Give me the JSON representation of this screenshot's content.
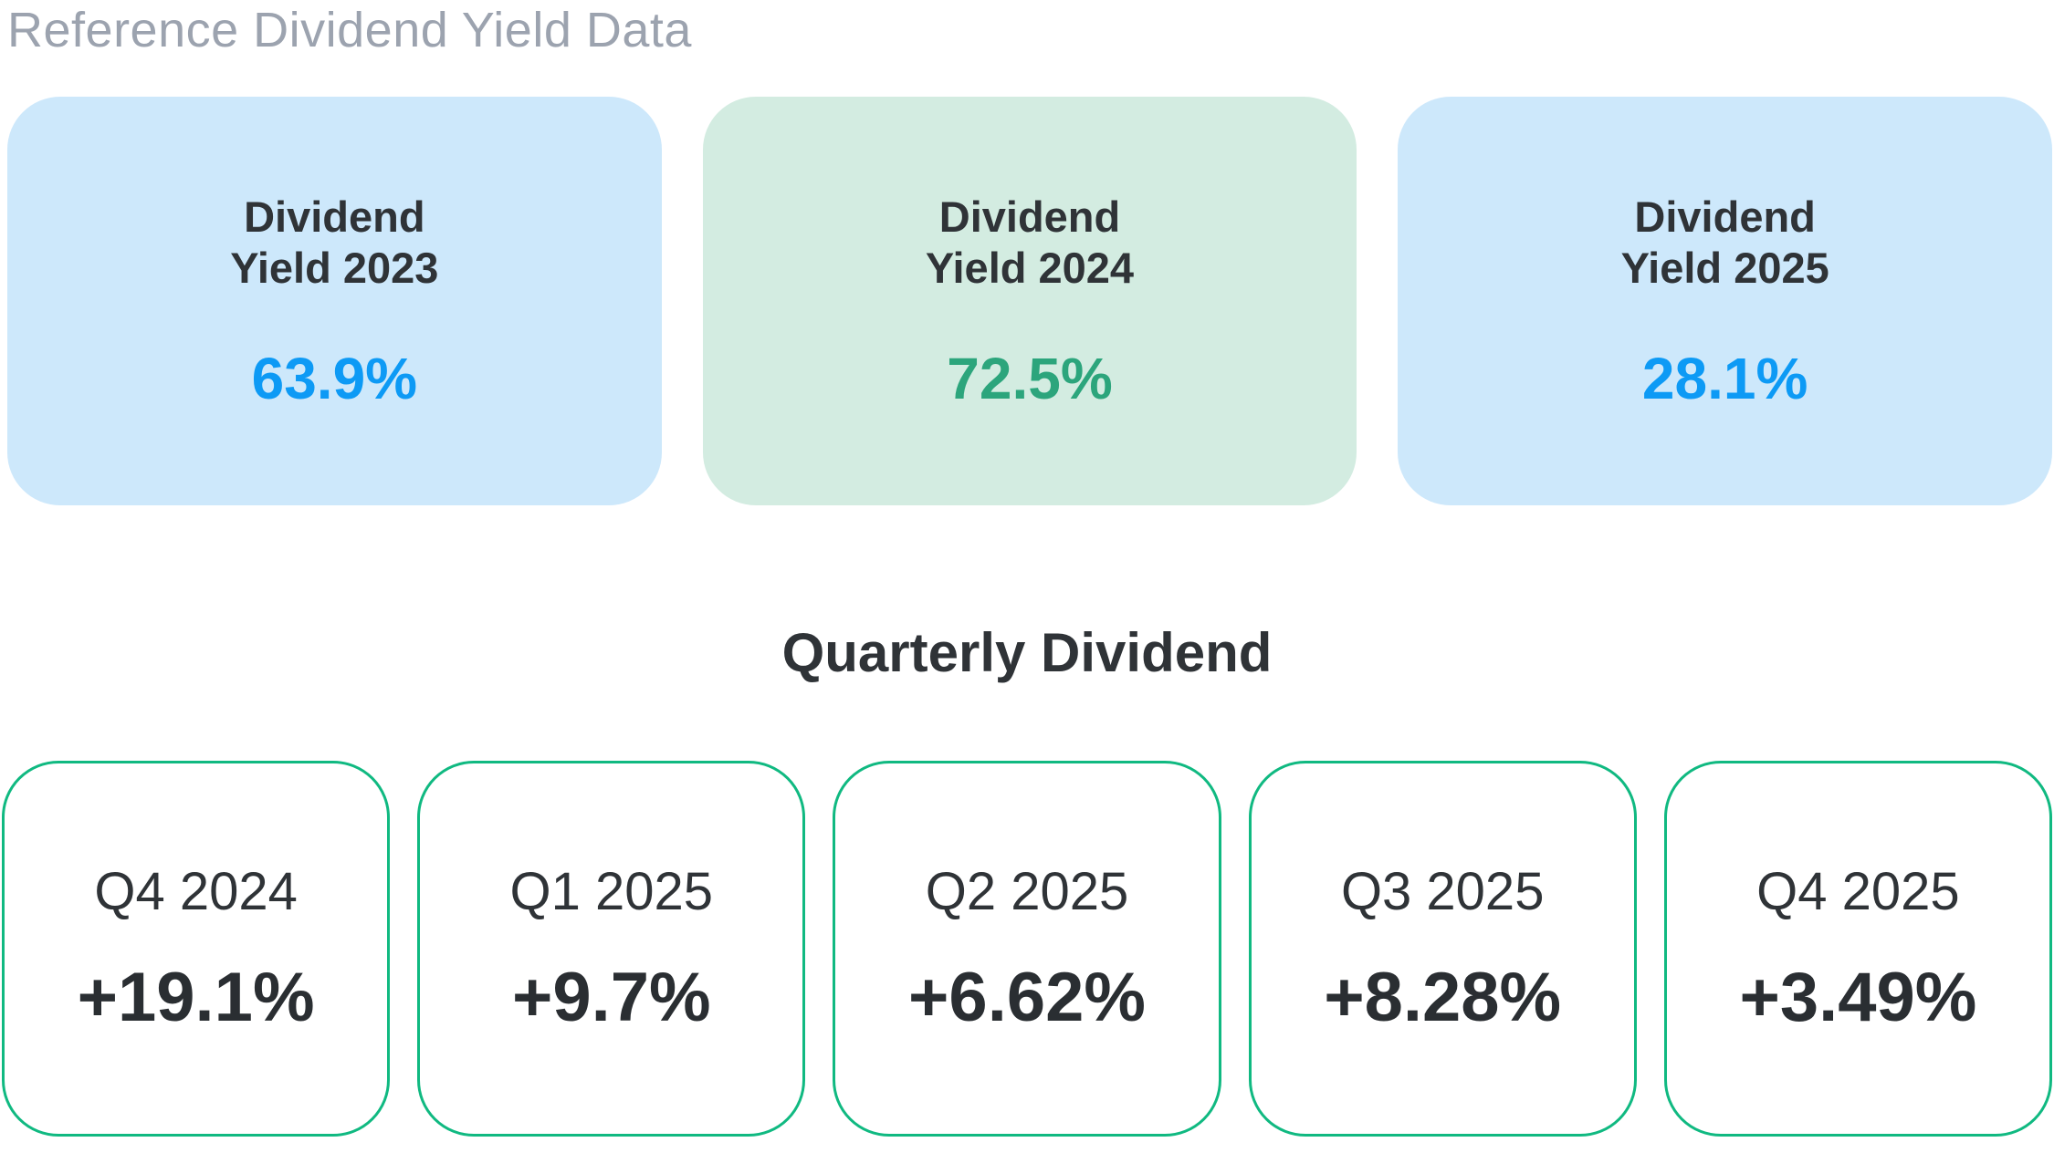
{
  "header": {
    "title": "Reference Dividend Yield Data"
  },
  "yield_section": {
    "cards": [
      {
        "label": "Dividend Yield 2023",
        "value": "63.9%",
        "background": "#cde8fb",
        "value_color": "#0d9af5"
      },
      {
        "label": "Dividend Yield 2024",
        "value": "72.5%",
        "background": "#d3ece1",
        "value_color": "#2ca57c"
      },
      {
        "label": "Dividend Yield 2025",
        "value": "28.1%",
        "background": "#cde8fb",
        "value_color": "#0d9af5"
      }
    ]
  },
  "quarterly_section": {
    "title": "Quarterly Dividend",
    "cards": [
      {
        "label": "Q4 2024",
        "value": "+19.1%"
      },
      {
        "label": "Q1 2025",
        "value": "+9.7%"
      },
      {
        "label": "Q2 2025",
        "value": "+6.62%"
      },
      {
        "label": "Q3 2025",
        "value": "+8.28%"
      },
      {
        "label": "Q4 2025",
        "value": "+3.49%"
      }
    ]
  },
  "colors": {
    "header_text": "#9ca3af",
    "dark_text": "#2f3337",
    "blue_card_background": "#cde8fb",
    "green_card_background": "#d3ece1",
    "blue_value": "#0d9af5",
    "green_value": "#2ca57c",
    "quarter_card_border": "#10b981",
    "page_background": "#ffffff"
  }
}
